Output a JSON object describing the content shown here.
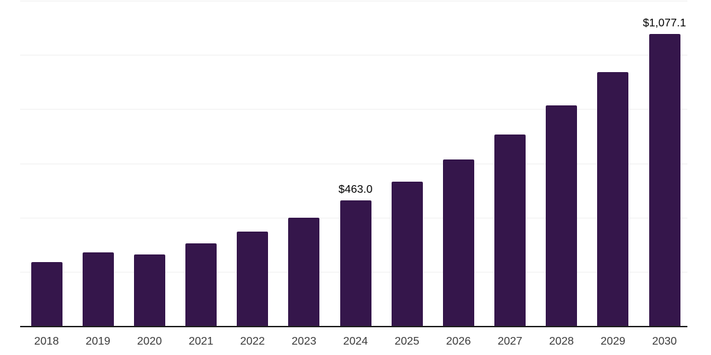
{
  "page": {
    "background_color": "#ffffff"
  },
  "colors": {
    "bar": "#35164B",
    "gridline": "#f0f0f0",
    "axis_line": "#1f1f1f",
    "data_label": "#000000",
    "tick_label": "#3a3a3a"
  },
  "chart_data": {
    "type": "bar",
    "title": "",
    "xlabel": "",
    "ylabel": "",
    "categories": [
      "2018",
      "2019",
      "2020",
      "2021",
      "2022",
      "2023",
      "2024",
      "2025",
      "2026",
      "2027",
      "2028",
      "2029",
      "2030"
    ],
    "values": [
      235,
      270,
      263,
      305,
      349,
      400,
      463.0,
      533,
      614,
      706,
      813,
      936,
      1077.1
    ],
    "value_labels": [
      "",
      "",
      "",
      "",
      "",
      "",
      "$463.0",
      "",
      "",
      "",
      "",
      "",
      "$1,077.1"
    ],
    "ylim": [
      0,
      1200
    ],
    "gridline_step": 200,
    "grid": true,
    "legend": false,
    "y_axis_tick_labels_visible": false,
    "x_axis_line_visible": true
  }
}
